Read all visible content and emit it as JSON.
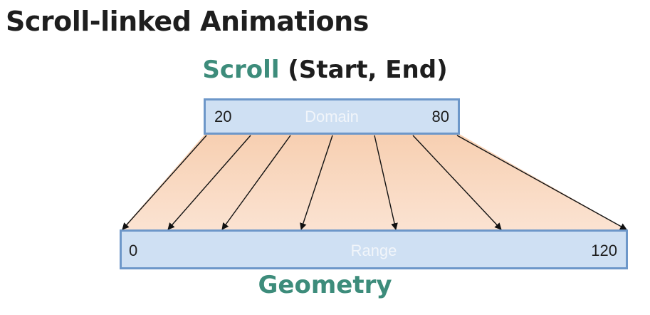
{
  "title": "Scroll-linked Animations",
  "scroll_heading": {
    "accent": "Scroll",
    "rest": " (Start, End)"
  },
  "domain": {
    "min": "20",
    "label": "Domain",
    "max": "80"
  },
  "range": {
    "min": "0",
    "label": "Range",
    "max": "120"
  },
  "geometry_heading": "Geometry",
  "colors": {
    "accent": "#3d8c7b",
    "box_fill": "#cfe0f3",
    "box_border": "#6d97c9",
    "mapping_fill": "#f9d8bf"
  }
}
